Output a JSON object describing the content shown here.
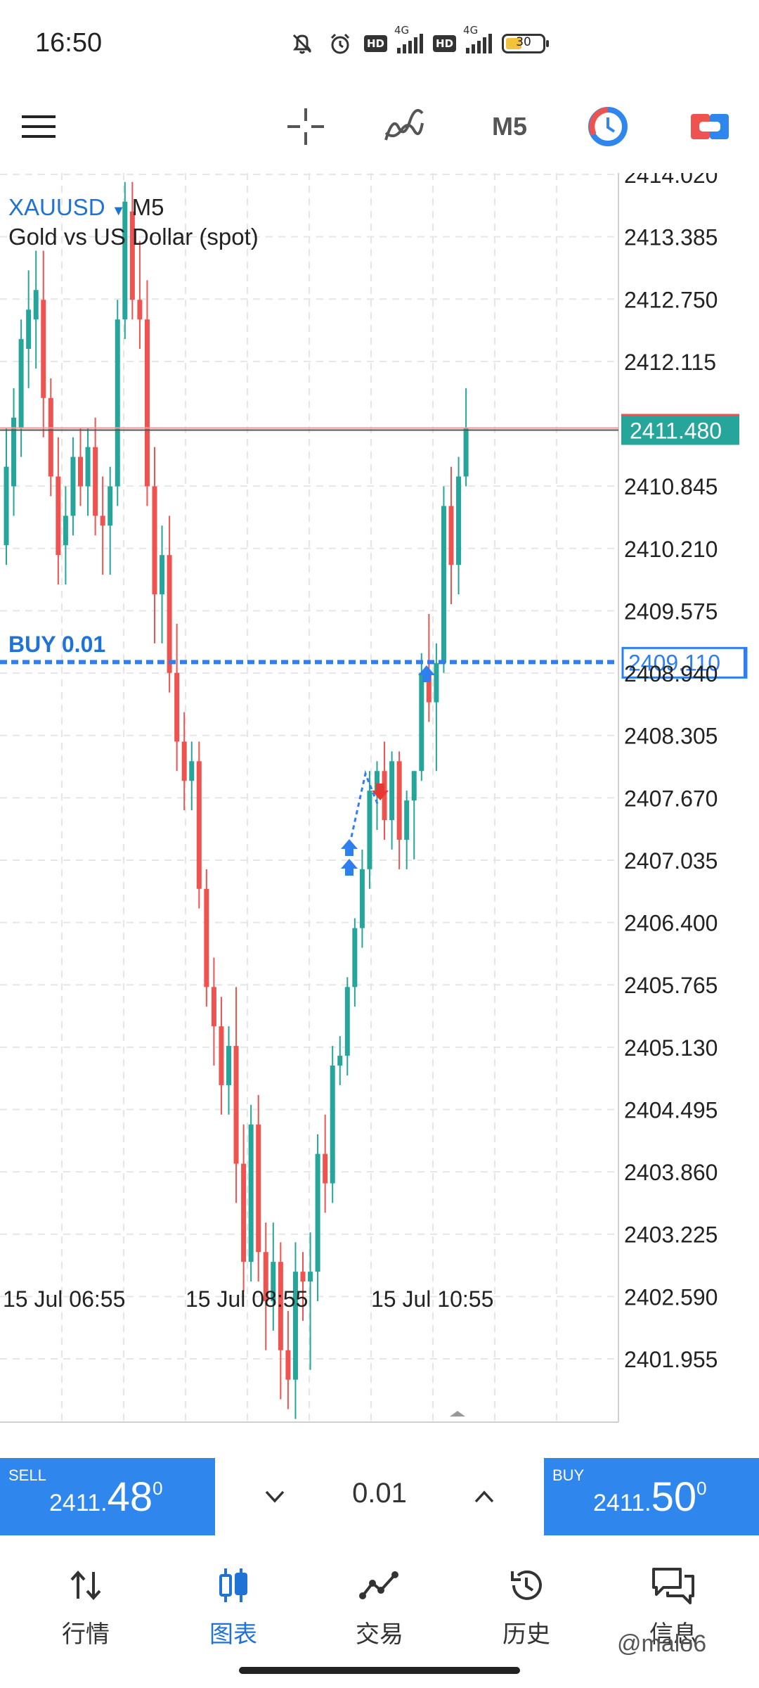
{
  "status": {
    "time": "16:50",
    "net1": "4G",
    "net2": "4G",
    "hd": "HD",
    "battery": "30"
  },
  "toolbar": {
    "timeframe": "M5"
  },
  "chart": {
    "symbol": "XAUUSD",
    "timeframe": "M5",
    "description": "Gold vs US Dollar (spot)",
    "buy_label": "BUY 0.01",
    "current_price": "2411.480",
    "buy_price": "2409.110",
    "yticks": [
      "2414.020",
      "2413.385",
      "2412.750",
      "2412.115",
      "2410.845",
      "2410.210",
      "2409.575",
      "2408.940",
      "2408.305",
      "2407.670",
      "2407.035",
      "2406.400",
      "2405.765",
      "2405.130",
      "2404.495",
      "2403.860",
      "2403.225",
      "2402.590",
      "2401.955"
    ],
    "xticks": [
      "15 Jul 06:55",
      "15 Jul 08:55",
      "15 Jul 10:55"
    ],
    "colors": {
      "up": "#26a69a",
      "down": "#ef5350",
      "accent": "#1f73d6",
      "buy_line": "#2f7ff0"
    }
  },
  "chart_data": {
    "type": "candlestick",
    "title": "XAUUSD M5",
    "ylim": [
      2401.4,
      2414.1
    ],
    "series": [
      {
        "o": 2410.3,
        "h": 2411.5,
        "l": 2410.1,
        "c": 2411.1
      },
      {
        "o": 2410.9,
        "h": 2411.9,
        "l": 2410.6,
        "c": 2411.6
      },
      {
        "o": 2411.5,
        "h": 2412.6,
        "l": 2411.2,
        "c": 2412.4
      },
      {
        "o": 2412.3,
        "h": 2413.1,
        "l": 2411.9,
        "c": 2412.7
      },
      {
        "o": 2412.6,
        "h": 2413.3,
        "l": 2412.1,
        "c": 2412.9
      },
      {
        "o": 2412.8,
        "h": 2413.3,
        "l": 2411.4,
        "c": 2411.8
      },
      {
        "o": 2411.8,
        "h": 2412.0,
        "l": 2410.8,
        "c": 2411.0
      },
      {
        "o": 2411.0,
        "h": 2411.4,
        "l": 2409.9,
        "c": 2410.2
      },
      {
        "o": 2410.3,
        "h": 2410.9,
        "l": 2409.9,
        "c": 2410.6
      },
      {
        "o": 2410.6,
        "h": 2411.4,
        "l": 2410.4,
        "c": 2411.2
      },
      {
        "o": 2411.2,
        "h": 2411.5,
        "l": 2410.7,
        "c": 2410.9
      },
      {
        "o": 2410.9,
        "h": 2411.5,
        "l": 2410.6,
        "c": 2411.3
      },
      {
        "o": 2411.3,
        "h": 2411.6,
        "l": 2410.4,
        "c": 2410.6
      },
      {
        "o": 2410.6,
        "h": 2411.0,
        "l": 2410.0,
        "c": 2410.5
      },
      {
        "o": 2410.5,
        "h": 2411.1,
        "l": 2410.0,
        "c": 2410.9
      },
      {
        "o": 2410.9,
        "h": 2412.8,
        "l": 2410.7,
        "c": 2412.6
      },
      {
        "o": 2412.6,
        "h": 2414.0,
        "l": 2412.4,
        "c": 2413.8
      },
      {
        "o": 2413.7,
        "h": 2414.0,
        "l": 2412.6,
        "c": 2412.8
      },
      {
        "o": 2412.8,
        "h": 2413.4,
        "l": 2412.3,
        "c": 2412.6
      },
      {
        "o": 2412.6,
        "h": 2413.0,
        "l": 2410.7,
        "c": 2410.9
      },
      {
        "o": 2410.9,
        "h": 2411.3,
        "l": 2409.3,
        "c": 2409.8
      },
      {
        "o": 2409.8,
        "h": 2410.5,
        "l": 2409.3,
        "c": 2410.2
      },
      {
        "o": 2410.2,
        "h": 2410.6,
        "l": 2408.8,
        "c": 2409.0
      },
      {
        "o": 2409.0,
        "h": 2409.5,
        "l": 2408.0,
        "c": 2408.3
      },
      {
        "o": 2408.3,
        "h": 2408.6,
        "l": 2407.6,
        "c": 2407.9
      },
      {
        "o": 2407.9,
        "h": 2408.3,
        "l": 2407.6,
        "c": 2408.1
      },
      {
        "o": 2408.1,
        "h": 2408.3,
        "l": 2406.6,
        "c": 2406.8
      },
      {
        "o": 2406.8,
        "h": 2407.0,
        "l": 2405.6,
        "c": 2405.8
      },
      {
        "o": 2405.8,
        "h": 2406.1,
        "l": 2405.0,
        "c": 2405.4
      },
      {
        "o": 2405.4,
        "h": 2405.7,
        "l": 2404.5,
        "c": 2404.8
      },
      {
        "o": 2404.8,
        "h": 2405.4,
        "l": 2404.5,
        "c": 2405.2
      },
      {
        "o": 2405.2,
        "h": 2405.8,
        "l": 2403.6,
        "c": 2404.0
      },
      {
        "o": 2404.0,
        "h": 2404.4,
        "l": 2402.7,
        "c": 2403.0
      },
      {
        "o": 2403.0,
        "h": 2404.6,
        "l": 2402.8,
        "c": 2404.4
      },
      {
        "o": 2404.4,
        "h": 2404.7,
        "l": 2402.8,
        "c": 2403.1
      },
      {
        "o": 2403.1,
        "h": 2403.4,
        "l": 2402.1,
        "c": 2402.6
      },
      {
        "o": 2402.6,
        "h": 2403.4,
        "l": 2402.3,
        "c": 2403.0
      },
      {
        "o": 2403.0,
        "h": 2403.2,
        "l": 2401.6,
        "c": 2402.1
      },
      {
        "o": 2402.1,
        "h": 2402.5,
        "l": 2401.5,
        "c": 2401.8
      },
      {
        "o": 2401.8,
        "h": 2403.2,
        "l": 2401.4,
        "c": 2402.9
      },
      {
        "o": 2402.9,
        "h": 2403.1,
        "l": 2402.4,
        "c": 2402.8
      },
      {
        "o": 2402.8,
        "h": 2403.3,
        "l": 2401.9,
        "c": 2402.9
      },
      {
        "o": 2402.9,
        "h": 2404.3,
        "l": 2402.6,
        "c": 2404.1
      },
      {
        "o": 2404.1,
        "h": 2404.5,
        "l": 2403.5,
        "c": 2403.8
      },
      {
        "o": 2403.8,
        "h": 2405.2,
        "l": 2403.6,
        "c": 2405.0
      },
      {
        "o": 2405.0,
        "h": 2405.3,
        "l": 2404.8,
        "c": 2405.1
      },
      {
        "o": 2405.1,
        "h": 2405.9,
        "l": 2404.9,
        "c": 2405.8
      },
      {
        "o": 2405.8,
        "h": 2406.5,
        "l": 2405.6,
        "c": 2406.4
      },
      {
        "o": 2406.4,
        "h": 2407.2,
        "l": 2406.2,
        "c": 2407.0
      },
      {
        "o": 2407.0,
        "h": 2408.0,
        "l": 2406.8,
        "c": 2407.8
      },
      {
        "o": 2407.8,
        "h": 2408.1,
        "l": 2407.4,
        "c": 2408.0
      },
      {
        "o": 2408.0,
        "h": 2408.3,
        "l": 2407.3,
        "c": 2407.5
      },
      {
        "o": 2407.5,
        "h": 2408.2,
        "l": 2407.2,
        "c": 2408.1
      },
      {
        "o": 2408.1,
        "h": 2408.2,
        "l": 2407.0,
        "c": 2407.3
      },
      {
        "o": 2407.3,
        "h": 2407.8,
        "l": 2407.0,
        "c": 2407.7
      },
      {
        "o": 2407.7,
        "h": 2408.0,
        "l": 2407.1,
        "c": 2408.0
      },
      {
        "o": 2408.0,
        "h": 2409.2,
        "l": 2407.9,
        "c": 2409.0
      },
      {
        "o": 2409.0,
        "h": 2409.6,
        "l": 2408.5,
        "c": 2408.7
      },
      {
        "o": 2408.7,
        "h": 2409.3,
        "l": 2408.0,
        "c": 2409.1
      },
      {
        "o": 2409.1,
        "h": 2410.9,
        "l": 2409.0,
        "c": 2410.7
      },
      {
        "o": 2410.7,
        "h": 2411.1,
        "l": 2409.7,
        "c": 2410.1
      },
      {
        "o": 2410.1,
        "h": 2411.2,
        "l": 2409.8,
        "c": 2411.0
      },
      {
        "o": 2411.0,
        "h": 2411.9,
        "l": 2410.9,
        "c": 2411.5
      }
    ]
  },
  "trade": {
    "sell_label": "SELL",
    "sell_main": "2411.",
    "sell_big": "48",
    "sell_sup": "0",
    "buy_label": "BUY",
    "buy_main": "2411.",
    "buy_big": "50",
    "buy_sup": "0",
    "lot": "0.01"
  },
  "tabs": [
    {
      "label": "行情",
      "icon": "arrows-updown-icon"
    },
    {
      "label": "图表",
      "icon": "candles-icon"
    },
    {
      "label": "交易",
      "icon": "trend-icon"
    },
    {
      "label": "历史",
      "icon": "history-icon"
    },
    {
      "label": "信息",
      "icon": "chat-icon"
    }
  ],
  "watermark": "@malo6"
}
